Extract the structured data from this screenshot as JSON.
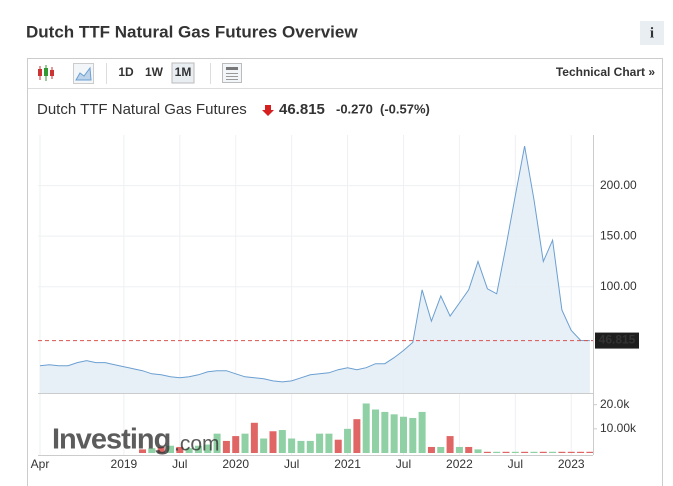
{
  "header": {
    "title": "Dutch TTF Natural Gas Futures Overview",
    "info": "i"
  },
  "toolbar": {
    "periods": [
      "1D",
      "1W",
      "1M"
    ],
    "selected": 2,
    "link": "Technical Chart »"
  },
  "quote": {
    "change": "-0.270",
    "change_pct": "(-0.57%)"
  },
  "logo": {
    "main": "Investing",
    "suffix": ".com"
  },
  "chart_data": {
    "type": "line",
    "title": "Dutch TTF Natural Gas Futures",
    "categories": [
      "Apr",
      null,
      null,
      null,
      null,
      null,
      null,
      null,
      null,
      "2019",
      null,
      null,
      null,
      null,
      null,
      "Jul",
      null,
      null,
      null,
      null,
      null,
      "2020",
      null,
      null,
      null,
      null,
      null,
      "Jul",
      null,
      null,
      null,
      null,
      null,
      "2021",
      null,
      null,
      null,
      null,
      null,
      "Jul",
      null,
      null,
      null,
      null,
      null,
      "2022",
      null,
      null,
      null,
      null,
      null,
      "Jul",
      null,
      null,
      null,
      null,
      null,
      "2023",
      null,
      null
    ],
    "values": [
      22,
      23,
      22,
      22,
      25,
      27,
      25,
      25,
      23,
      21,
      19,
      17,
      14,
      13,
      11,
      10,
      11,
      13,
      16,
      17,
      17,
      14,
      11,
      10,
      9,
      7,
      6,
      7,
      10,
      13,
      14,
      15,
      18,
      20,
      18,
      20,
      24,
      24,
      30,
      37,
      45,
      97,
      66,
      91,
      71,
      84,
      97,
      125,
      98,
      93,
      140,
      190,
      239,
      186,
      125,
      146,
      77,
      57,
      47,
      46.815
    ],
    "line_color": "#6b9fd1",
    "fill_color": "#e4edf6",
    "price_line_color": "#d9534f",
    "ylim": [
      -5,
      250
    ],
    "yticks": [
      {
        "value": 100,
        "label": "100.00"
      },
      {
        "value": 150,
        "label": "150.00"
      },
      {
        "value": 200,
        "label": "200.00"
      }
    ],
    "grid": true,
    "volume": {
      "values": [
        null,
        null,
        null,
        null,
        null,
        null,
        null,
        null,
        null,
        null,
        null,
        1500,
        2000,
        2500,
        3000,
        2500,
        2000,
        3000,
        3500,
        8000,
        5000,
        7000,
        8000,
        12500,
        6000,
        9000,
        9500,
        6000,
        5000,
        5000,
        8000,
        8000,
        5500,
        10000,
        14000,
        20500,
        18000,
        17000,
        16000,
        15000,
        14500,
        17000,
        2500,
        2500,
        7000,
        2500,
        2500,
        1500,
        500,
        500,
        500,
        500,
        500,
        500,
        500,
        500,
        500,
        500,
        500,
        500
      ],
      "colors": [
        "#8fd0a4",
        "#8fd0a4",
        "#8fd0a4",
        "#8fd0a4",
        "#8fd0a4",
        "#8fd0a4",
        "#8fd0a4",
        "#8fd0a4",
        "#8fd0a4",
        "#8fd0a4",
        "#8fd0a4",
        "#e06666",
        "#8fd0a4",
        "#e06666",
        "#8fd0a4",
        "#e06666",
        "#8fd0a4",
        "#8fd0a4",
        "#8fd0a4",
        "#8fd0a4",
        "#e06666",
        "#e06666",
        "#8fd0a4",
        "#e06666",
        "#8fd0a4",
        "#e06666",
        "#8fd0a4",
        "#8fd0a4",
        "#8fd0a4",
        "#8fd0a4",
        "#8fd0a4",
        "#8fd0a4",
        "#e06666",
        "#8fd0a4",
        "#e06666",
        "#8fd0a4",
        "#8fd0a4",
        "#8fd0a4",
        "#8fd0a4",
        "#8fd0a4",
        "#8fd0a4",
        "#8fd0a4",
        "#e06666",
        "#8fd0a4",
        "#e06666",
        "#8fd0a4",
        "#e06666",
        "#8fd0a4",
        "#e06666",
        "#8fd0a4",
        "#e06666",
        "#8fd0a4",
        "#e06666",
        "#8fd0a4",
        "#e06666",
        "#8fd0a4",
        "#e06666",
        "#e06666",
        "#e06666",
        "#e06666"
      ],
      "ylim": [
        0,
        24000
      ],
      "yticks": [
        {
          "value": 10000,
          "label": "10.00k"
        },
        {
          "value": 20000,
          "label": "20.0k"
        }
      ]
    }
  }
}
